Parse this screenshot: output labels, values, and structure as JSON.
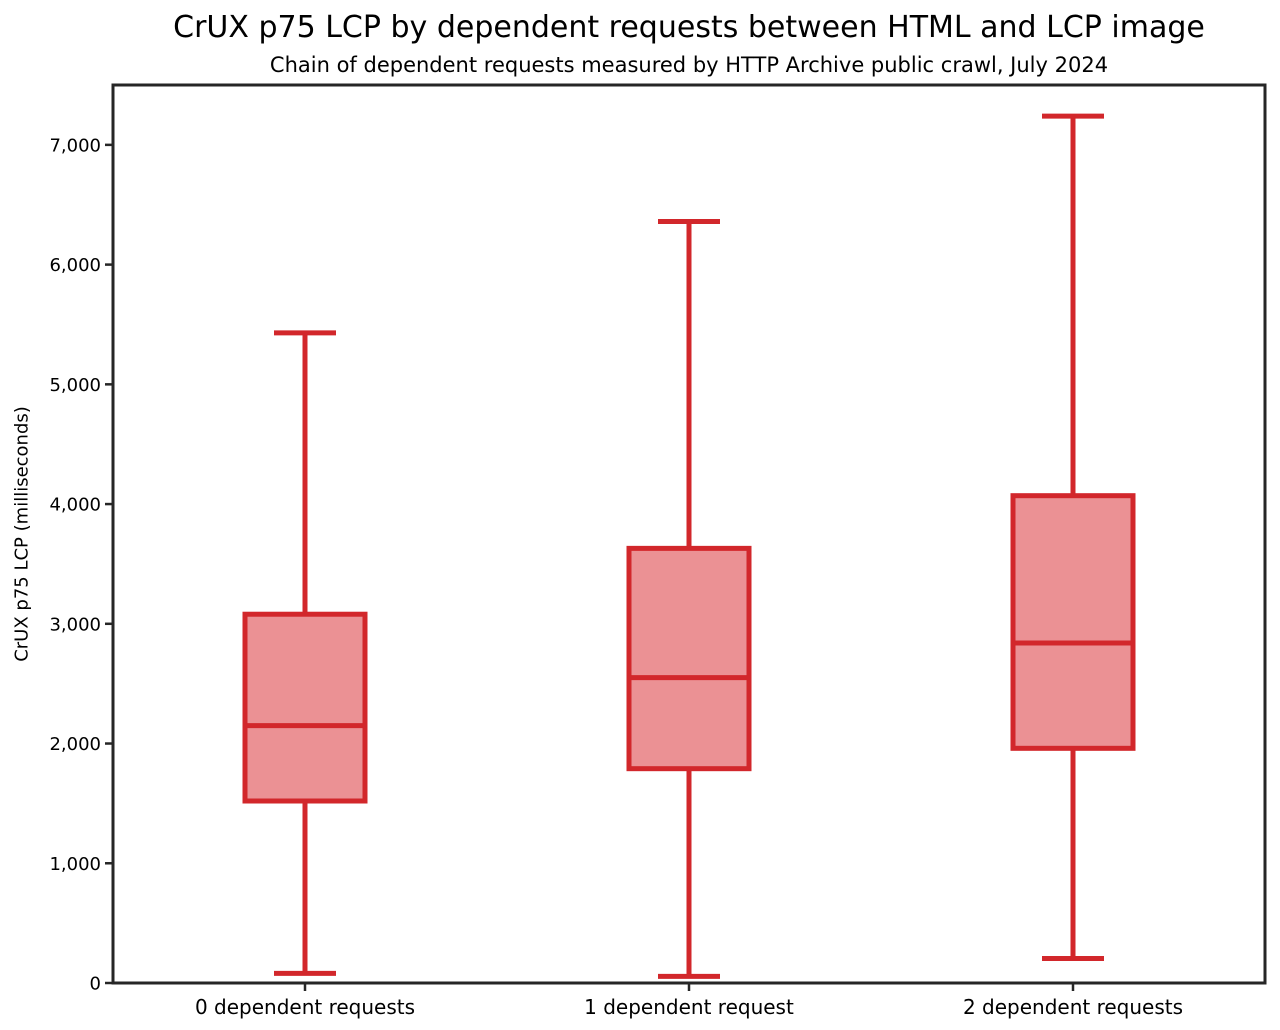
{
  "chart_data": {
    "type": "boxplot",
    "title": "CrUX p75 LCP by dependent requests between HTML and LCP image",
    "subtitle": "Chain of dependent requests measured by HTTP Archive public crawl, July 2024",
    "ylabel": "CrUX p75 LCP (milliseconds)",
    "xlabel": "",
    "categories": [
      "0 dependent requests",
      "1 dependent request",
      "2 dependent requests"
    ],
    "series": [
      {
        "category": "0 dependent requests",
        "whisker_low": 80,
        "q1": 1520,
        "median": 2150,
        "q3": 3080,
        "whisker_high": 5430
      },
      {
        "category": "1 dependent request",
        "whisker_low": 55,
        "q1": 1790,
        "median": 2550,
        "q3": 3630,
        "whisker_high": 6360
      },
      {
        "category": "2 dependent requests",
        "whisker_low": 205,
        "q1": 1960,
        "median": 2840,
        "q3": 4070,
        "whisker_high": 7240
      }
    ],
    "y_ticks": [
      0,
      1000,
      2000,
      3000,
      4000,
      5000,
      6000,
      7000
    ],
    "y_tick_labels": [
      "0",
      "1,000",
      "2,000",
      "3,000",
      "4,000",
      "5,000",
      "6,000",
      "7,000"
    ],
    "ylim": [
      0,
      7500
    ],
    "grid": false,
    "legend": "none",
    "colors": {
      "box_fill": "#eb9194",
      "box_stroke": "#d2272b",
      "axis": "#262626",
      "text": "#000000",
      "background": "#ffffff"
    }
  }
}
